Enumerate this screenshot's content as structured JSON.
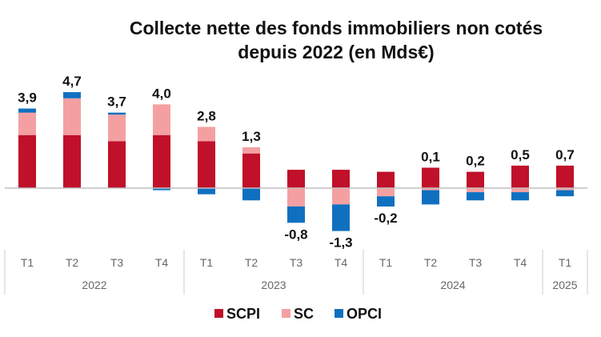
{
  "chart_data": {
    "type": "bar",
    "stacked": true,
    "title": [
      "Collecte nette des fonds immobiliers non cotés",
      "depuis 2022 (en Mds€)"
    ],
    "categories": [
      "T1",
      "T2",
      "T3",
      "T4",
      "T1",
      "T2",
      "T3",
      "T4",
      "T1",
      "T2",
      "T3",
      "T4",
      "T1"
    ],
    "year_groups": [
      {
        "label": "2022",
        "count": 4
      },
      {
        "label": "2023",
        "count": 4
      },
      {
        "label": "2024",
        "count": 4
      },
      {
        "label": "2025",
        "count": 1
      }
    ],
    "series": [
      {
        "name": "SCPI",
        "color": "#c0102a",
        "values": [
          2.6,
          2.6,
          2.3,
          2.6,
          2.3,
          1.7,
          0.9,
          0.9,
          0.8,
          1.0,
          0.8,
          1.1,
          1.1
        ]
      },
      {
        "name": "SC",
        "color": "#f4a0a2",
        "values": [
          1.1,
          1.8,
          1.3,
          1.5,
          0.7,
          0.3,
          -0.9,
          -0.8,
          -0.4,
          -0.1,
          -0.2,
          -0.2,
          -0.1
        ]
      },
      {
        "name": "OPCI",
        "color": "#1070c0",
        "values": [
          0.2,
          0.3,
          0.1,
          -0.1,
          -0.3,
          -0.6,
          -0.8,
          -1.3,
          -0.5,
          -0.7,
          -0.4,
          -0.4,
          -0.3
        ]
      }
    ],
    "totals": [
      "3,9",
      "4,7",
      "3,7",
      "4,0",
      "2,8",
      "1,3",
      "-0,8",
      "-1,3",
      "-0,2",
      "0,1",
      "0,2",
      "0,5",
      "0,7"
    ],
    "legend_position": "bottom",
    "grid": false
  }
}
